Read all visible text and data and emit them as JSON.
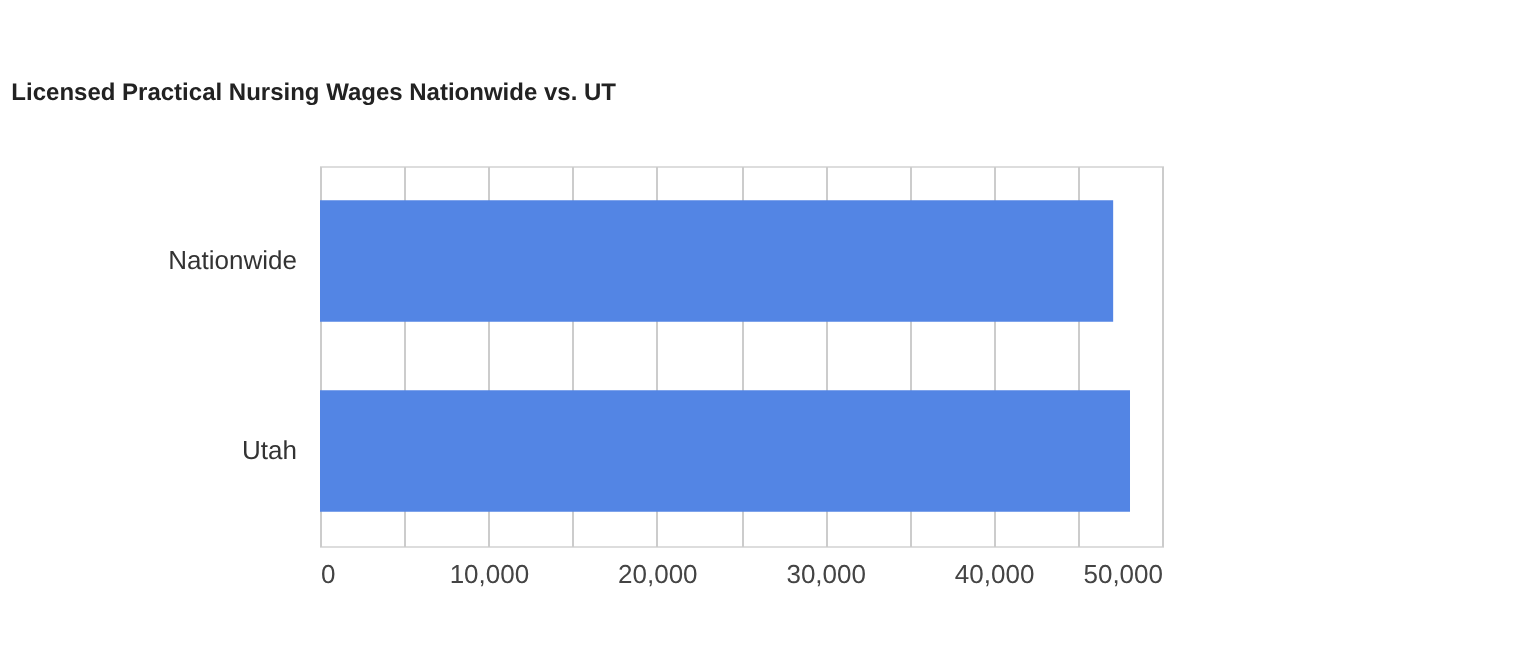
{
  "chart_data": {
    "type": "bar",
    "orientation": "horizontal",
    "title": "Licensed Practical Nursing Wages Nationwide vs. UT",
    "categories": [
      "Nationwide",
      "Utah"
    ],
    "values": [
      47100,
      48100
    ],
    "color": "#5385e4",
    "xlim": [
      0,
      50000
    ],
    "xticks": [
      0,
      {
        "value": 5000,
        "label": null
      },
      {
        "value": 10000,
        "label": "10,000"
      },
      {
        "value": 15000,
        "label": null
      },
      {
        "value": 20000,
        "label": "20,000"
      },
      {
        "value": 25000,
        "label": null
      },
      {
        "value": 30000,
        "label": "30,000"
      },
      {
        "value": 35000,
        "label": null
      },
      {
        "value": 40000,
        "label": "40,000"
      },
      {
        "value": 45000,
        "label": null
      },
      {
        "value": 50000,
        "label": "50,000"
      }
    ],
    "grid": "x"
  }
}
